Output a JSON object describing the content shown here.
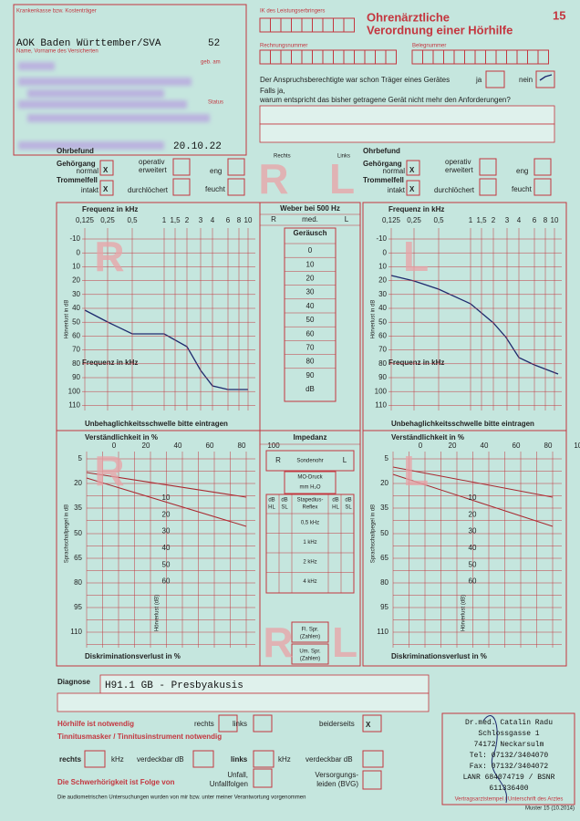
{
  "header": {
    "insurer_label": "Krankenkasse bzw. Kostenträger",
    "insurer": "AOK Baden Württember/SVA",
    "insurer_code": "52",
    "name_label": "Name, Vorname des Versicherten",
    "birth_label": "geb. am",
    "status_label": "Status",
    "date": "20.10.22",
    "ik_label": "IK des Leistungserbringers",
    "invoice_label": "Rechnungsnummer",
    "receipt_label": "Belegnummer",
    "title": [
      "Ohrenärztliche",
      "Verordnung einer Hörhilfe"
    ],
    "form_number": "15"
  },
  "previous_device": {
    "question": "Der Anspruchsberechtigte war schon Träger eines Gerätes",
    "yes": "ja",
    "no": "nein",
    "reason_question": [
      "Falls ja,",
      "warum entspricht das bisher getragene Gerät nicht mehr den Anforderungen?"
    ]
  },
  "sides": {
    "right": "Rechts",
    "left": "Links",
    "R": "R",
    "L": "L"
  },
  "ear_findings": {
    "title": "Ohrbefund",
    "canal": "Gehörgang",
    "normal": "normal",
    "operated": [
      "operativ",
      "erweitert"
    ],
    "narrow": "eng",
    "eardrum": "Trommelfell",
    "intact": "intakt",
    "perforated": "durchlöchert",
    "moist": "feucht",
    "mark": "X"
  },
  "audiogram": {
    "freq_label": "Frequenz in kHz",
    "frequencies": [
      "0,125",
      "0,25",
      "0,5",
      "1",
      "1,5",
      "2",
      "3",
      "4",
      "6",
      "8",
      "10"
    ],
    "loss_label": "Hörverlust in dB",
    "levels": [
      "-10",
      "0",
      "10",
      "20",
      "30",
      "40",
      "50",
      "60",
      "70",
      "80",
      "90",
      "100",
      "110"
    ],
    "discomfort": "Unbehaglichkeitsschwelle bitte eintragen"
  },
  "weber": {
    "title": "Weber bei 500 Hz",
    "R": "R",
    "med": "med.",
    "L": "L",
    "noise": "Geräusch",
    "levels": [
      "0",
      "10",
      "20",
      "30",
      "40",
      "50",
      "60",
      "70",
      "80",
      "90"
    ],
    "unit": "dB"
  },
  "speech": {
    "intelligibility": "Verständlichkeit in %",
    "percents": [
      "0",
      "20",
      "40",
      "60",
      "80",
      "100"
    ],
    "level_label": "Sprachschallpegel in dB",
    "levels": [
      "5",
      "20",
      "35",
      "50",
      "65",
      "80",
      "95",
      "110"
    ],
    "loss_label": "Hörverlust (dB)",
    "loss_levels": [
      "10",
      "20",
      "30",
      "40",
      "50",
      "60"
    ],
    "discrimination": "Diskriminationsverlust in %"
  },
  "impedance": {
    "title": "Impedanz",
    "R": "R",
    "probe": "Sondenohr",
    "L": "L",
    "mo_pressure": [
      "MO-Druck",
      "mm H₂O"
    ],
    "db_hl": [
      "dB",
      "HL"
    ],
    "db_sl": [
      "dB",
      "SL"
    ],
    "reflex": [
      "Stapedius-",
      "Reflex"
    ],
    "freqs": [
      "0,5 kHz",
      "1 kHz",
      "2 kHz",
      "4 kHz"
    ],
    "free_speech": [
      "Fl. Spr.",
      "(Zahlen)"
    ],
    "loud_speech": [
      "Um. Spr.",
      "(Zahlen)"
    ]
  },
  "diagnosis": {
    "label": "Diagnose",
    "text": "H91.1 GB - Presbyakusis"
  },
  "prescription": {
    "needed": "Hörhilfe ist notwendig",
    "right": "rechts",
    "left": "links",
    "both": "beiderseits",
    "mark": "X",
    "tinnitus": "Tinnitusmasker / Tinnitusinstrument notwendig",
    "khz": "kHz",
    "maskable": "verdeckbar dB",
    "cause": "Die Schwerhörigkeit ist Folge von",
    "accident": [
      "Unfall,",
      "Unfallfolgen"
    ],
    "bvg": [
      "Versorgungs-",
      "leiden (BVG)"
    ],
    "statement": "Die audiometrischen Untersuchungen wurden von mir bzw. unter meiner Verantwortung vorgenommen"
  },
  "stamp": {
    "lines": [
      "Dr.med. Catalin Radu",
      "Schlossgasse 1",
      "74172 Neckarsulm",
      "Tel: 07132/3404070",
      "Fax: 07132/3404072",
      "LANR 684074719 / BSNR",
      "611336400"
    ],
    "label": "Vertragsarztstempel / Unterschrift des Arztes"
  },
  "footer": "Muster 15 (10.2014)"
}
